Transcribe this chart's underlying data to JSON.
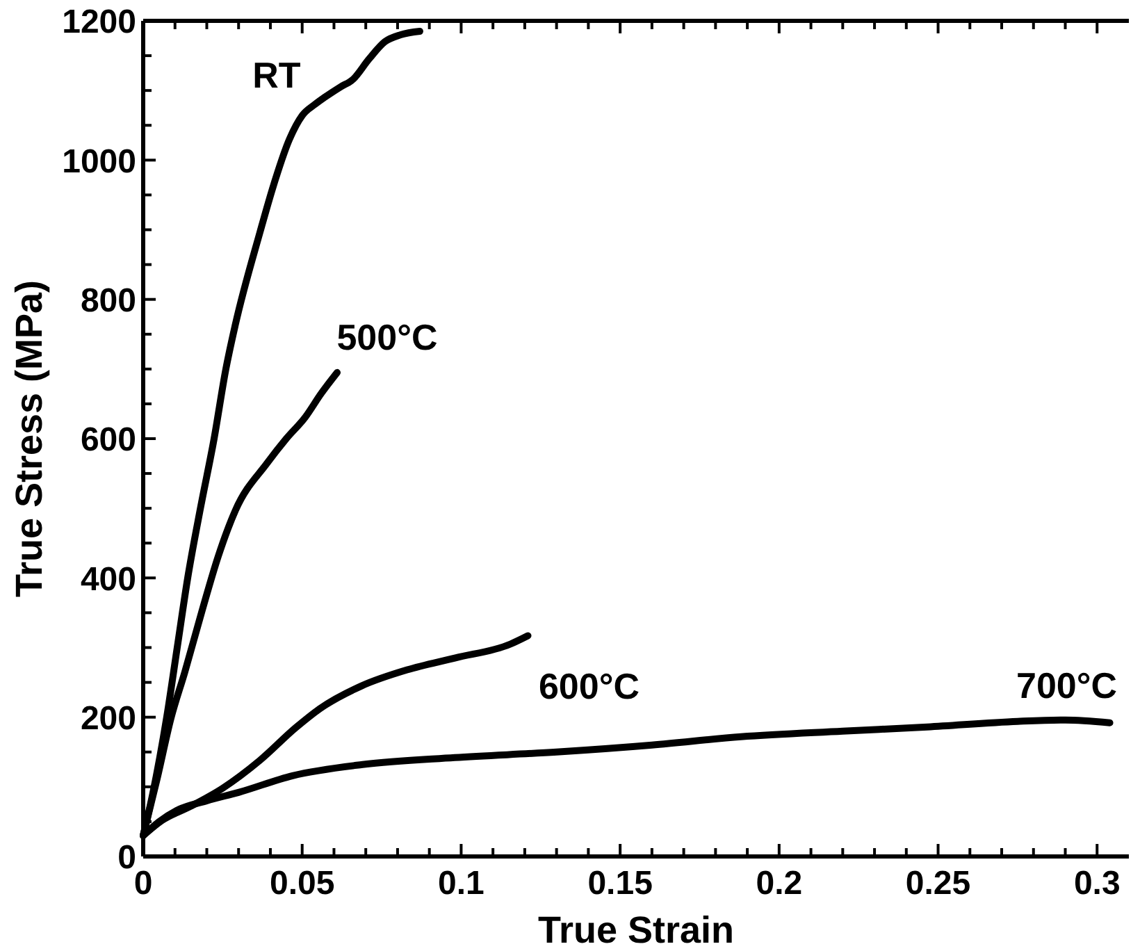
{
  "chart_data": {
    "type": "line",
    "xlabel": "True Strain",
    "ylabel": "True Stress (MPa)",
    "xlim": [
      0,
      0.31
    ],
    "ylim": [
      0,
      1200
    ],
    "xticks": [
      0,
      {
        "value": 0.01,
        "label": null
      },
      {
        "value": 0.02,
        "label": null
      },
      {
        "value": 0.03,
        "label": null
      },
      {
        "value": 0.04,
        "label": null
      },
      0.05,
      {
        "value": 0.06,
        "label": null
      },
      {
        "value": 0.07,
        "label": null
      },
      {
        "value": 0.08,
        "label": null
      },
      {
        "value": 0.09,
        "label": null
      },
      0.1,
      {
        "value": 0.11,
        "label": null
      },
      {
        "value": 0.12,
        "label": null
      },
      {
        "value": 0.13,
        "label": null
      },
      {
        "value": 0.14,
        "label": null
      },
      0.15,
      {
        "value": 0.16,
        "label": null
      },
      {
        "value": 0.17,
        "label": null
      },
      {
        "value": 0.18,
        "label": null
      },
      {
        "value": 0.19,
        "label": null
      },
      0.2,
      {
        "value": 0.21,
        "label": null
      },
      {
        "value": 0.22,
        "label": null
      },
      {
        "value": 0.23,
        "label": null
      },
      {
        "value": 0.24,
        "label": null
      },
      0.25,
      {
        "value": 0.26,
        "label": null
      },
      {
        "value": 0.27,
        "label": null
      },
      {
        "value": 0.28,
        "label": null
      },
      {
        "value": 0.29,
        "label": null
      },
      0.3
    ],
    "yticks": [
      0,
      {
        "value": 50,
        "label": null
      },
      {
        "value": 100,
        "label": null
      },
      {
        "value": 150,
        "label": null
      },
      200,
      {
        "value": 250,
        "label": null
      },
      {
        "value": 300,
        "label": null
      },
      {
        "value": 350,
        "label": null
      },
      400,
      {
        "value": 450,
        "label": null
      },
      {
        "value": 500,
        "label": null
      },
      {
        "value": 550,
        "label": null
      },
      600,
      {
        "value": 650,
        "label": null
      },
      {
        "value": 700,
        "label": null
      },
      {
        "value": 750,
        "label": null
      },
      800,
      {
        "value": 850,
        "label": null
      },
      {
        "value": 900,
        "label": null
      },
      {
        "value": 950,
        "label": null
      },
      1000,
      {
        "value": 1050,
        "label": null
      },
      {
        "value": 1100,
        "label": null
      },
      {
        "value": 1150,
        "label": null
      },
      1200
    ],
    "grid": false,
    "line_style": "solid",
    "series": [
      {
        "name": "RT",
        "color": "#000000",
        "x": [
          0,
          0.003,
          0.0074,
          0.0107,
          0.014,
          0.018,
          0.0223,
          0.026,
          0.029,
          0.0367,
          0.041,
          0.046,
          0.05,
          0.054,
          0.057,
          0.062,
          0.066,
          0.071,
          0.076,
          0.081,
          0.087
        ],
        "values": [
          30,
          90,
          200,
          300,
          400,
          500,
          600,
          700,
          764,
          896,
          964,
          1030,
          1064,
          1080,
          1090,
          1105,
          1116,
          1145,
          1170,
          1180,
          1185
        ]
      },
      {
        "name": "500°C",
        "color": "#000000",
        "x": [
          0,
          0.0044,
          0.0087,
          0.0131,
          0.0184,
          0.0236,
          0.029,
          0.039,
          0.045,
          0.051,
          0.056,
          0.061
        ],
        "values": [
          30,
          112,
          198,
          265,
          351,
          431,
          497,
          565,
          600,
          631,
          665,
          695
        ]
      },
      {
        "name": "600°C",
        "color": "#000000",
        "x": [
          0,
          0.006,
          0.0149,
          0.025,
          0.0367,
          0.048,
          0.0555,
          0.0687,
          0.083,
          0.098,
          0.1155,
          0.121
        ],
        "values": [
          30,
          52,
          72,
          98,
          138,
          185,
          212,
          245,
          268,
          285,
          305,
          317
        ]
      },
      {
        "name": "700°C",
        "color": "#000000",
        "x": [
          0,
          0.005,
          0.0105,
          0.02,
          0.03,
          0.047,
          0.069,
          0.098,
          0.13,
          0.16,
          0.188,
          0.22,
          0.2466,
          0.275,
          0.29,
          0.304
        ],
        "values": [
          30,
          50,
          66,
          80,
          92,
          116,
          132,
          142,
          150,
          160,
          172,
          180,
          186,
          194,
          196,
          192
        ]
      }
    ]
  }
}
